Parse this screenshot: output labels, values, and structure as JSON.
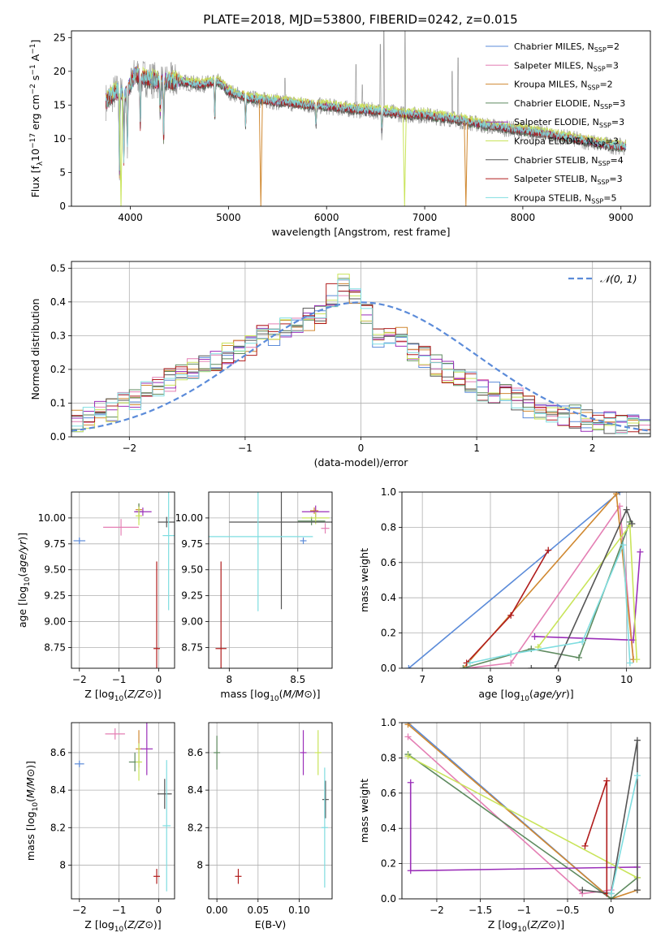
{
  "figure": {
    "title": "PLATE=2018, MJD=53800, FIBERID=0242, z=0.015"
  },
  "colors": {
    "palette": [
      "#5b8bd9",
      "#e47fb4",
      "#d08830",
      "#5e8a5f",
      "#9b2fb9",
      "#c9e45a",
      "#555555",
      "#b01c1c",
      "#7fdde0"
    ],
    "axes": "#000000",
    "grid": "#b0b0b0"
  },
  "models": [
    {
      "name": "Chabrier MILES",
      "nssp": "2",
      "color": "#5b8bd9"
    },
    {
      "name": "Salpeter MILES",
      "nssp": "3",
      "color": "#e47fb4"
    },
    {
      "name": "Kroupa MILES",
      "nssp": "2",
      "color": "#d08830"
    },
    {
      "name": "Chabrier ELODIE",
      "nssp": "3",
      "color": "#5e8a5f"
    },
    {
      "name": "Salpeter ELODIE",
      "nssp": "3",
      "color": "#9b2fb9"
    },
    {
      "name": "Kroupa ELODIE",
      "nssp": "3",
      "color": "#c9e45a"
    },
    {
      "name": "Chabrier STELIB",
      "nssp": "4",
      "color": "#555555"
    },
    {
      "name": "Salpeter STELIB",
      "nssp": "3",
      "color": "#b01c1c"
    },
    {
      "name": "Kroupa STELIB",
      "nssp": "5",
      "color": "#7fdde0"
    }
  ],
  "chart_data": [
    {
      "id": "spectrum",
      "type": "line",
      "xlabel": "wavelength [Angstrom, rest frame]",
      "ylabel_parts": [
        "Flux [f",
        "λ",
        "10",
        "−17",
        " erg cm",
        "−2",
        " s",
        "−1",
        " A",
        "−1",
        "]"
      ],
      "xlim": [
        3400,
        9300
      ],
      "ylim": [
        0,
        26
      ],
      "xticks": [
        4000,
        5000,
        6000,
        7000,
        8000,
        9000
      ],
      "yticks": [
        0,
        5,
        10,
        15,
        20,
        25
      ],
      "legend_position": "upper-right",
      "observed_color": "#9a9a9a",
      "continuum": {
        "x": [
          3750,
          3850,
          3950,
          4050,
          4150,
          4300,
          4500,
          4700,
          4900,
          5000,
          5200,
          5500,
          5800,
          6000,
          6300,
          6600,
          6800,
          7000,
          7300,
          7600,
          7900,
          8200,
          8500,
          8800,
          9000
        ],
        "y": [
          15.5,
          17.0,
          16.5,
          19.5,
          19.0,
          18.5,
          18.5,
          18.0,
          18.5,
          17.0,
          16.0,
          15.5,
          15.0,
          14.8,
          14.3,
          14.0,
          13.6,
          13.5,
          12.9,
          12.0,
          11.4,
          10.8,
          10.0,
          9.2,
          8.8
        ]
      },
      "absorption_features": [
        {
          "x": 3890,
          "y": 5
        },
        {
          "x": 3934,
          "y": 7
        },
        {
          "x": 3970,
          "y": 9
        },
        {
          "x": 4102,
          "y": 12
        },
        {
          "x": 4305,
          "y": 14
        },
        {
          "x": 4340,
          "y": 9
        },
        {
          "x": 4861,
          "y": 13
        },
        {
          "x": 5175,
          "y": 12
        },
        {
          "x": 5892,
          "y": 12
        },
        {
          "x": 6563,
          "y": 11
        }
      ],
      "emission_spikes": [
        {
          "x": 5577,
          "y": 19
        },
        {
          "x": 6300,
          "y": 21
        },
        {
          "x": 6363,
          "y": 18
        },
        {
          "x": 6547,
          "y": 24
        },
        {
          "x": 6583,
          "y": 26
        },
        {
          "x": 6800,
          "y": 26
        },
        {
          "x": 7280,
          "y": 20
        },
        {
          "x": 7340,
          "y": 22
        }
      ],
      "drops": [
        {
          "x": 3905,
          "color": "#c9e45a",
          "y": 0
        },
        {
          "x": 5330,
          "color": "#d08830",
          "y": 0
        },
        {
          "x": 6795,
          "color": "#c9e45a",
          "y": 0
        },
        {
          "x": 7420,
          "color": "#d08830",
          "y": 0
        }
      ]
    },
    {
      "id": "residuals",
      "type": "histogram",
      "xlabel": "(data-model)/error",
      "ylabel": "Normed distribution",
      "xlim": [
        -2.5,
        2.5
      ],
      "ylim": [
        0,
        0.52
      ],
      "xticks": [
        -2,
        -1,
        0,
        1,
        2
      ],
      "yticks": [
        0.0,
        0.1,
        0.2,
        0.3,
        0.4,
        0.5
      ],
      "bin_edges": [
        -2.5,
        -2.4,
        -2.3,
        -2.2,
        -2.1,
        -2.0,
        -1.9,
        -1.8,
        -1.7,
        -1.6,
        -1.5,
        -1.4,
        -1.3,
        -1.2,
        -1.1,
        -1.0,
        -0.9,
        -0.8,
        -0.7,
        -0.6,
        -0.5,
        -0.4,
        -0.3,
        -0.2,
        -0.1,
        0.0,
        0.1,
        0.2,
        0.3,
        0.4,
        0.5,
        0.6,
        0.7,
        0.8,
        0.9,
        1.0,
        1.1,
        1.2,
        1.3,
        1.4,
        1.5,
        1.6,
        1.7,
        1.8,
        1.9,
        2.0,
        2.1,
        2.2,
        2.3,
        2.4,
        2.5
      ],
      "base_heights": [
        0.05,
        0.06,
        0.08,
        0.08,
        0.1,
        0.11,
        0.13,
        0.15,
        0.17,
        0.19,
        0.2,
        0.22,
        0.23,
        0.25,
        0.26,
        0.27,
        0.3,
        0.3,
        0.32,
        0.33,
        0.35,
        0.37,
        0.42,
        0.45,
        0.41,
        0.37,
        0.3,
        0.3,
        0.29,
        0.26,
        0.24,
        0.21,
        0.19,
        0.17,
        0.16,
        0.14,
        0.13,
        0.12,
        0.11,
        0.09,
        0.08,
        0.07,
        0.06,
        0.06,
        0.05,
        0.05,
        0.04,
        0.03,
        0.03,
        0.03
      ],
      "reference_curve": {
        "label": "𝒩(0, 1)",
        "mean": 0,
        "sigma": 1,
        "color": "#5b8bd9"
      }
    },
    {
      "id": "age-vs-Z",
      "type": "errorbar",
      "xlabel": "Z [log10(Z/Z⊙)]",
      "ylabel": "age  [log10(age/yr)]",
      "xlim": [
        -2.2,
        0.4
      ],
      "ylim": [
        8.55,
        10.25
      ],
      "xticks": [
        -2,
        -1,
        0
      ],
      "yticks": [
        8.75,
        9.0,
        9.25,
        9.5,
        9.75,
        10.0
      ],
      "points": [
        {
          "m": 0,
          "x": -2.0,
          "y": 9.78,
          "xerr": 0.15,
          "yerr": 0.0
        },
        {
          "m": 1,
          "x": -0.95,
          "y": 9.91,
          "xerr": 0.45,
          "yerr": 0.08
        },
        {
          "m": 2,
          "x": -0.5,
          "y": 10.08,
          "xerr": 0.0,
          "yerr": 0.06
        },
        {
          "m": 3,
          "x": -0.5,
          "y": 10.06,
          "xerr": 0.05,
          "yerr": 0.08
        },
        {
          "m": 4,
          "x": -0.4,
          "y": 10.06,
          "xerr": 0.22,
          "yerr": 0.04
        },
        {
          "m": 5,
          "x": -0.5,
          "y": 10.02,
          "xerr": 0.05,
          "yerr": 0.09
        },
        {
          "m": 6,
          "x": 0.2,
          "y": 9.96,
          "xerr": 0.22,
          "yerr": 0.05
        },
        {
          "m": 7,
          "x": -0.05,
          "y": 8.74,
          "xerr": 0.08,
          "yerr": 0.84
        },
        {
          "m": 8,
          "x": 0.25,
          "y": 9.83,
          "xerr": 0.15,
          "yerr": 0.72
        }
      ]
    },
    {
      "id": "age-vs-mass",
      "type": "errorbar",
      "xlabel": "mass [log10(M/M⊙)]",
      "ylabel": "",
      "xlim": [
        7.85,
        8.75
      ],
      "ylim": [
        8.55,
        10.25
      ],
      "xticks": [
        8.0,
        8.5
      ],
      "yticks": [
        8.75,
        9.0,
        9.25,
        9.5,
        9.75,
        10.0
      ],
      "points": [
        {
          "m": 0,
          "x": 8.54,
          "y": 9.78,
          "xerr": 0.01,
          "yerr": 0.0
        },
        {
          "m": 1,
          "x": 8.7,
          "y": 9.9,
          "xerr": 0.03,
          "yerr": 0.05
        },
        {
          "m": 2,
          "x": 8.62,
          "y": 10.07,
          "xerr": 0.03,
          "yerr": 0.02
        },
        {
          "m": 3,
          "x": 8.6,
          "y": 9.97,
          "xerr": 0.1,
          "yerr": 0.04
        },
        {
          "m": 4,
          "x": 8.63,
          "y": 10.06,
          "xerr": 0.1,
          "yerr": 0.06
        },
        {
          "m": 5,
          "x": 8.63,
          "y": 10.0,
          "xerr": 0.1,
          "yerr": 0.06
        },
        {
          "m": 6,
          "x": 8.38,
          "y": 9.96,
          "xerr": 0.38,
          "yerr": 0.84
        },
        {
          "m": 7,
          "x": 7.94,
          "y": 8.74,
          "xerr": 0.04,
          "yerr": 0.84
        },
        {
          "m": 8,
          "x": 8.21,
          "y": 9.82,
          "xerr": 0.4,
          "yerr": 0.72
        }
      ]
    },
    {
      "id": "weight-vs-age",
      "type": "line",
      "xlabel": "age  [log10(age/yr)]",
      "ylabel": "mass weight",
      "xlim": [
        6.7,
        10.35
      ],
      "ylim": [
        0,
        1
      ],
      "xticks": [
        7,
        8,
        9,
        10
      ],
      "yticks": [
        0.0,
        0.2,
        0.4,
        0.6,
        0.8,
        1.0
      ],
      "series": [
        {
          "m": 0,
          "x": [
            6.8,
            9.9
          ],
          "y": [
            0.0,
            1.0
          ]
        },
        {
          "m": 1,
          "x": [
            7.65,
            8.3,
            9.9,
            10.1
          ],
          "y": [
            0.0,
            0.03,
            0.92,
            0.05
          ]
        },
        {
          "m": 2,
          "x": [
            7.6,
            9.85,
            10.1
          ],
          "y": [
            0.0,
            0.99,
            0.05
          ]
        },
        {
          "m": 3,
          "x": [
            7.6,
            8.6,
            9.3,
            10.05
          ],
          "y": [
            0.0,
            0.11,
            0.06,
            0.83
          ]
        },
        {
          "m": 4,
          "x": [
            8.65,
            10.1,
            10.2
          ],
          "y": [
            0.18,
            0.16,
            0.66
          ]
        },
        {
          "m": 5,
          "x": [
            8.7,
            10.05,
            10.15
          ],
          "y": [
            0.12,
            0.81,
            0.05
          ]
        },
        {
          "m": 6,
          "x": [
            8.6,
            8.95,
            10.0,
            10.08
          ],
          "y": [
            0.0,
            0.0,
            0.9,
            0.82
          ]
        },
        {
          "m": 7,
          "x": [
            7.65,
            8.3,
            8.85
          ],
          "y": [
            0.03,
            0.3,
            0.67
          ]
        },
        {
          "m": 8,
          "x": [
            7.7,
            8.3,
            9.35,
            9.95,
            10.05
          ],
          "y": [
            0.03,
            0.08,
            0.15,
            0.7,
            0.03
          ]
        }
      ]
    },
    {
      "id": "mass-vs-Z",
      "type": "errorbar",
      "xlabel": "Z [log10(Z/Z⊙)]",
      "ylabel": "mass [log10(M/M⊙)]",
      "xlim": [
        -2.2,
        0.4
      ],
      "ylim": [
        7.82,
        8.76
      ],
      "xticks": [
        -2,
        -1,
        0
      ],
      "yticks": [
        8.0,
        8.2,
        8.4,
        8.6
      ],
      "points": [
        {
          "m": 0,
          "x": -2.0,
          "y": 8.54,
          "xerr": 0.12,
          "yerr": 0.0
        },
        {
          "m": 1,
          "x": -1.1,
          "y": 8.7,
          "xerr": 0.25,
          "yerr": 0.03
        },
        {
          "m": 2,
          "x": -0.5,
          "y": 8.62,
          "xerr": 0.0,
          "yerr": 0.1
        },
        {
          "m": 3,
          "x": -0.6,
          "y": 8.55,
          "xerr": 0.15,
          "yerr": 0.05
        },
        {
          "m": 4,
          "x": -0.3,
          "y": 8.62,
          "xerr": 0.15,
          "yerr": 0.14
        },
        {
          "m": 5,
          "x": -0.5,
          "y": 8.55,
          "xerr": 0.05,
          "yerr": 0.1
        },
        {
          "m": 6,
          "x": 0.15,
          "y": 8.38,
          "xerr": 0.18,
          "yerr": 0.08
        },
        {
          "m": 7,
          "x": -0.05,
          "y": 7.94,
          "xerr": 0.08,
          "yerr": 0.04
        },
        {
          "m": 8,
          "x": 0.2,
          "y": 8.21,
          "xerr": 0.1,
          "yerr": 0.35
        }
      ]
    },
    {
      "id": "mass-vs-ebv",
      "type": "errorbar",
      "xlabel": "E(B-V)",
      "ylabel": "",
      "xlim": [
        -0.01,
        0.14
      ],
      "ylim": [
        7.82,
        8.76
      ],
      "xticks": [
        0.0,
        0.05,
        0.1
      ],
      "xtick_labels": [
        "0.00",
        "0.05",
        "0.10"
      ],
      "yticks": [
        8.0,
        8.2,
        8.4,
        8.6
      ],
      "points": [
        {
          "m": 3,
          "x": 0.0,
          "y": 8.6,
          "xerr": 0.0,
          "yerr": 0.09
        },
        {
          "m": 7,
          "x": 0.026,
          "y": 7.94,
          "xerr": 0.0,
          "yerr": 0.04
        },
        {
          "m": 4,
          "x": 0.105,
          "y": 8.6,
          "xerr": 0.0,
          "yerr": 0.12
        },
        {
          "m": 5,
          "x": 0.123,
          "y": 8.6,
          "xerr": 0.0,
          "yerr": 0.12
        },
        {
          "m": 6,
          "x": 0.132,
          "y": 8.35,
          "xerr": 0.0,
          "yerr": 0.1
        },
        {
          "m": 8,
          "x": 0.131,
          "y": 8.2,
          "xerr": 0.0,
          "yerr": 0.32
        }
      ]
    },
    {
      "id": "weight-vs-Z",
      "type": "line",
      "xlabel": "Z [log10(Z/Z⊙)]",
      "ylabel": "mass weight",
      "xlim": [
        -2.4,
        0.45
      ],
      "ylim": [
        0,
        1
      ],
      "xticks": [
        -2.0,
        -1.5,
        -1.0,
        -0.5,
        0.0
      ],
      "yticks": [
        0.0,
        0.2,
        0.4,
        0.6,
        0.8,
        1.0
      ],
      "series": [
        {
          "m": 0,
          "x": [
            -2.33,
            0.0
          ],
          "y": [
            1.0,
            0.0
          ]
        },
        {
          "m": 1,
          "x": [
            -2.33,
            -0.33,
            0.0
          ],
          "y": [
            0.92,
            0.03,
            0.05
          ]
        },
        {
          "m": 2,
          "x": [
            -2.33,
            0.0,
            0.3
          ],
          "y": [
            0.99,
            0.0,
            0.05
          ]
        },
        {
          "m": 3,
          "x": [
            -2.33,
            0.0,
            0.3
          ],
          "y": [
            0.82,
            0.0,
            0.12
          ]
        },
        {
          "m": 4,
          "x": [
            -2.3,
            -2.3,
            0.3
          ],
          "y": [
            0.66,
            0.16,
            0.18
          ]
        },
        {
          "m": 5,
          "x": [
            -2.33,
            0.3
          ],
          "y": [
            0.81,
            0.12
          ]
        },
        {
          "m": 6,
          "x": [
            -0.33,
            0.0,
            0.3,
            0.3
          ],
          "y": [
            0.05,
            0.03,
            0.9,
            0.05
          ]
        },
        {
          "m": 7,
          "x": [
            -0.3,
            -0.05,
            -0.05
          ],
          "y": [
            0.3,
            0.67,
            0.03
          ]
        },
        {
          "m": 8,
          "x": [
            0.0,
            0.3
          ],
          "y": [
            0.03,
            0.7
          ]
        }
      ]
    }
  ]
}
